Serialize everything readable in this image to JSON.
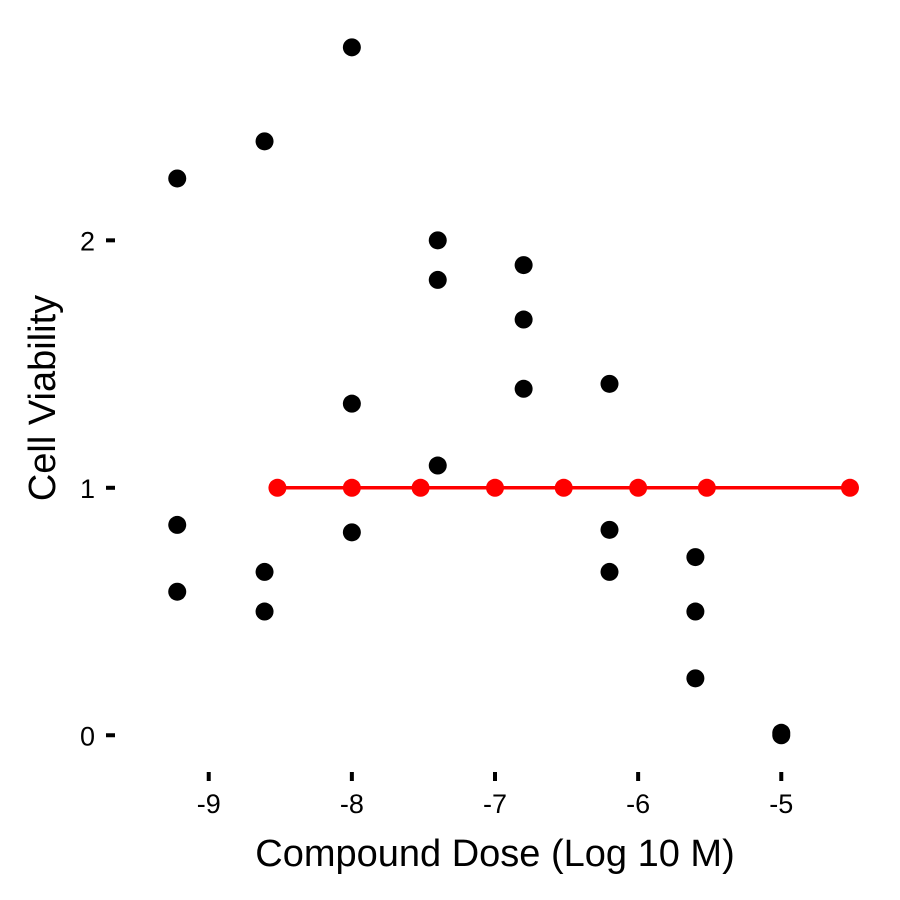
{
  "chart_data": {
    "type": "scatter",
    "title": "",
    "xlabel": "Compound Dose (Log 10 M)",
    "ylabel": "Cell Viability",
    "xlim": [
      -9.55,
      -4.45
    ],
    "ylim": [
      -0.1,
      2.85
    ],
    "xticks": [
      -9,
      -8,
      -7,
      -6,
      -5
    ],
    "xtick_labels": [
      "-9",
      "-8",
      "-7",
      "-6",
      "-5"
    ],
    "yticks": [
      0,
      1,
      2
    ],
    "ytick_labels": [
      "0",
      "1",
      "2"
    ],
    "grid": false,
    "legend": "none",
    "series": [
      {
        "mode": "markers",
        "color": "#000000",
        "points": [
          {
            "x": -9.22,
            "y": 2.25
          },
          {
            "x": -9.22,
            "y": 0.85
          },
          {
            "x": -9.22,
            "y": 0.58
          },
          {
            "x": -8.61,
            "y": 2.4
          },
          {
            "x": -8.61,
            "y": 0.66
          },
          {
            "x": -8.61,
            "y": 0.5
          },
          {
            "x": -8.0,
            "y": 2.78
          },
          {
            "x": -8.0,
            "y": 1.34
          },
          {
            "x": -8.0,
            "y": 0.82
          },
          {
            "x": -7.4,
            "y": 2.0
          },
          {
            "x": -7.4,
            "y": 1.84
          },
          {
            "x": -7.4,
            "y": 1.09
          },
          {
            "x": -6.8,
            "y": 1.9
          },
          {
            "x": -6.8,
            "y": 1.68
          },
          {
            "x": -6.8,
            "y": 1.4
          },
          {
            "x": -6.2,
            "y": 1.42
          },
          {
            "x": -6.2,
            "y": 0.83
          },
          {
            "x": -6.2,
            "y": 0.66
          },
          {
            "x": -5.6,
            "y": 0.72
          },
          {
            "x": -5.6,
            "y": 0.5
          },
          {
            "x": -5.6,
            "y": 0.23
          },
          {
            "x": -5.0,
            "y": 0.01
          },
          {
            "x": -5.0,
            "y": 0.0
          }
        ]
      },
      {
        "mode": "lines+markers",
        "color": "#ff0000",
        "points": [
          {
            "x": -8.52,
            "y": 1.0
          },
          {
            "x": -8.0,
            "y": 1.0
          },
          {
            "x": -7.52,
            "y": 1.0
          },
          {
            "x": -7.0,
            "y": 1.0
          },
          {
            "x": -6.52,
            "y": 1.0
          },
          {
            "x": -6.0,
            "y": 1.0
          },
          {
            "x": -5.52,
            "y": 1.0
          },
          {
            "x": -4.52,
            "y": 1.0
          }
        ]
      }
    ]
  }
}
